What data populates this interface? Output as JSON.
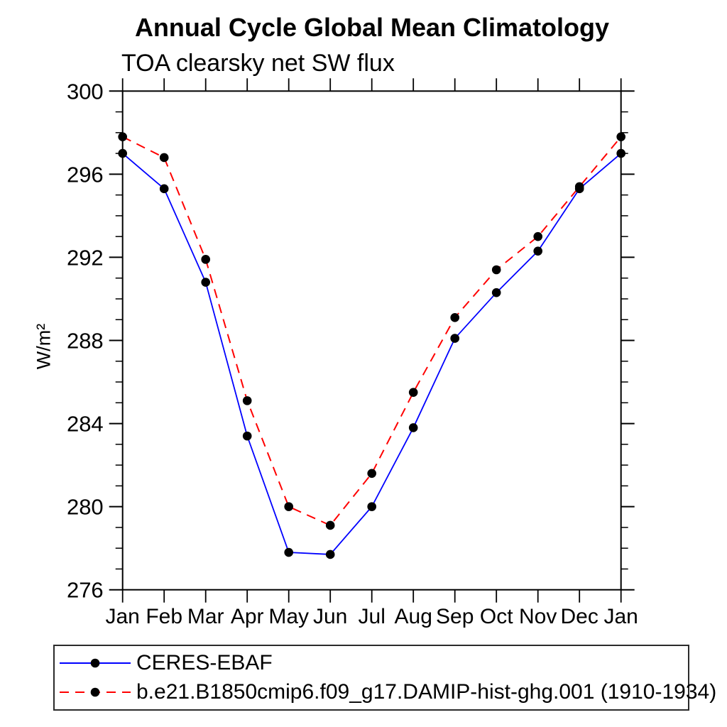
{
  "chart_data": {
    "type": "line",
    "title": "Annual Cycle Global Mean Climatology",
    "subtitle": "TOA clearsky net SW flux",
    "ylabel": "W/m²",
    "xlabel": "",
    "categories": [
      "Jan",
      "Feb",
      "Mar",
      "Apr",
      "May",
      "Jun",
      "Jul",
      "Aug",
      "Sep",
      "Oct",
      "Nov",
      "Dec",
      "Jan"
    ],
    "series": [
      {
        "name": "CERES-EBAF",
        "color": "#0000ff",
        "line_style": "solid",
        "marker": "filled-circle",
        "marker_color": "#000000",
        "values": [
          297.0,
          295.3,
          290.8,
          283.4,
          277.8,
          277.7,
          280.0,
          283.8,
          288.1,
          290.3,
          292.3,
          295.3,
          297.0
        ]
      },
      {
        "name": "b.e21.B1850cmip6.f09_g17.DAMIP-hist-ghg.001 (1910-1934)",
        "color": "#ff0000",
        "line_style": "dashed",
        "marker": "filled-circle",
        "marker_color": "#000000",
        "values": [
          297.8,
          296.8,
          291.9,
          285.1,
          280.0,
          279.1,
          281.6,
          285.5,
          289.1,
          291.4,
          293.0,
          295.4,
          297.8
        ]
      }
    ],
    "ylim": [
      276,
      300
    ],
    "yticks_major": [
      276,
      280,
      284,
      288,
      292,
      296,
      300
    ],
    "y_minor_step": 1,
    "grid": false,
    "frame": "box-with-outward-ticks-all-sides",
    "legend_position": "bottom-left-box"
  }
}
